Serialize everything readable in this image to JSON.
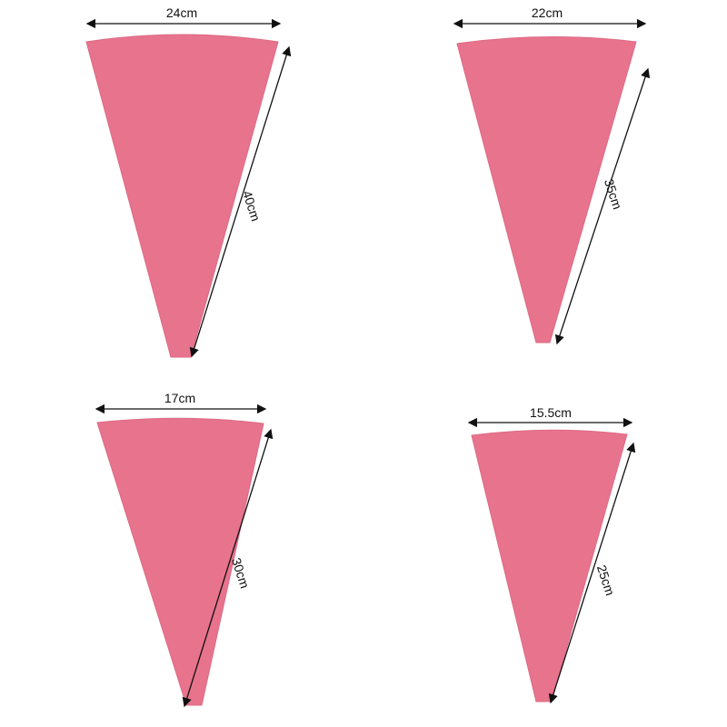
{
  "colors": {
    "bag": "#e8738d",
    "bag_shade": "#dd6a84",
    "arrow": "#111111",
    "background": "#ffffff"
  },
  "bags": [
    {
      "width_label": "24cm",
      "length_label": "40cm"
    },
    {
      "width_label": "22cm",
      "length_label": "35cm"
    },
    {
      "width_label": "17cm",
      "length_label": "30cm"
    },
    {
      "width_label": "15.5cm",
      "length_label": "25cm"
    }
  ]
}
